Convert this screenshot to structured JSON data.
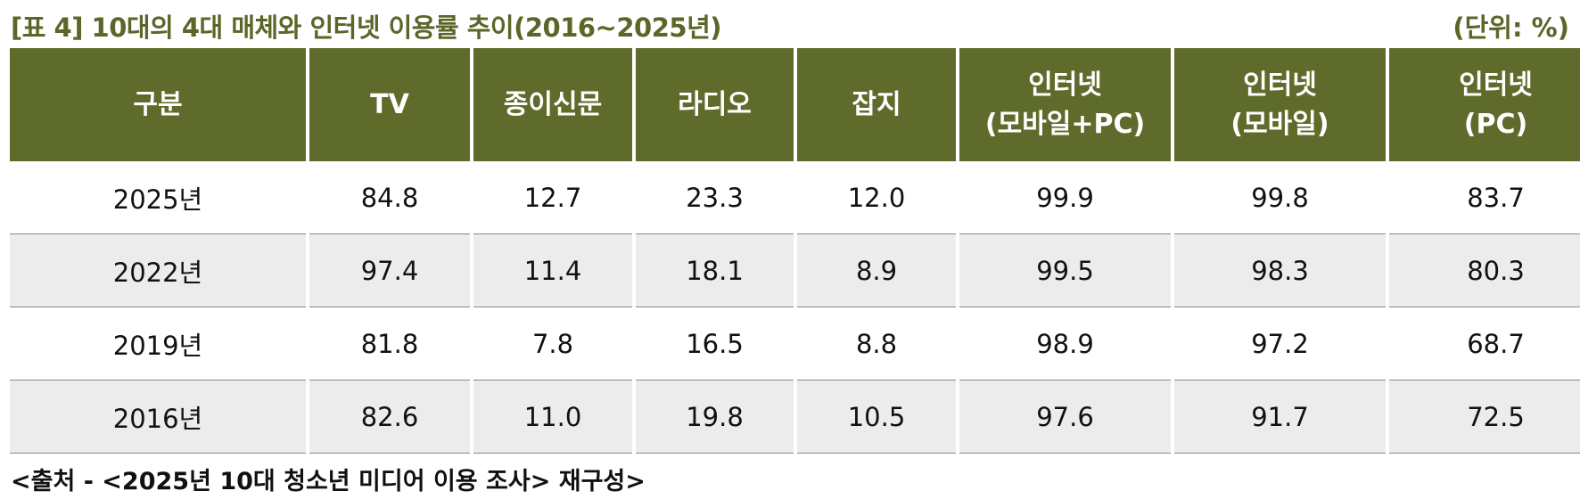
{
  "header": {
    "title": "[표 4] 10대의 4대 매체와 인터넷 이용률 추이(2016~2025년)",
    "unit": "(단위: %)"
  },
  "table": {
    "columns": [
      "구분",
      "TV",
      "종이신문",
      "라디오",
      "잡지",
      "인터넷\n(모바일+PC)",
      "인터넷\n(모바일)",
      "인터넷\n(PC)"
    ],
    "rows": [
      [
        "2025년",
        "84.8",
        "12.7",
        "23.3",
        "12.0",
        "99.9",
        "99.8",
        "83.7"
      ],
      [
        "2022년",
        "97.4",
        "11.4",
        "18.1",
        "8.9",
        "99.5",
        "98.3",
        "80.3"
      ],
      [
        "2019년",
        "81.8",
        "7.8",
        "16.5",
        "8.8",
        "98.9",
        "97.2",
        "68.7"
      ],
      [
        "2016년",
        "82.6",
        "11.0",
        "19.8",
        "10.5",
        "97.6",
        "91.7",
        "72.5"
      ]
    ]
  },
  "footer": {
    "source": "<출처 - <2025년 10대 청소년 미디어 이용 조사> 재구성>"
  }
}
